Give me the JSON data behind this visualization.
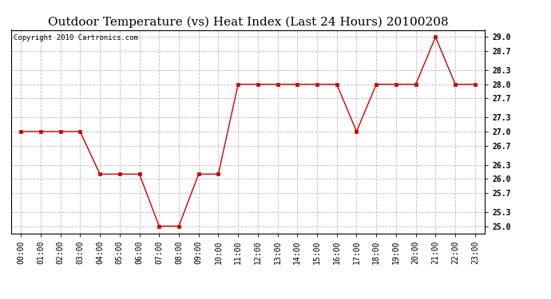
{
  "title": "Outdoor Temperature (vs) Heat Index (Last 24 Hours) 20100208",
  "copyright_text": "Copyright 2010 Cartronics.com",
  "x_labels": [
    "00:00",
    "01:00",
    "02:00",
    "03:00",
    "04:00",
    "05:00",
    "06:00",
    "07:00",
    "08:00",
    "09:00",
    "10:00",
    "11:00",
    "12:00",
    "13:00",
    "14:00",
    "15:00",
    "16:00",
    "17:00",
    "18:00",
    "19:00",
    "20:00",
    "21:00",
    "22:00",
    "23:00"
  ],
  "y_values": [
    27.0,
    27.0,
    27.0,
    27.0,
    26.1,
    26.1,
    26.1,
    25.0,
    25.0,
    26.1,
    26.1,
    28.0,
    28.0,
    28.0,
    28.0,
    28.0,
    28.0,
    27.0,
    28.0,
    28.0,
    28.0,
    29.0,
    28.0,
    28.0
  ],
  "line_color": "#cc0000",
  "marker": "s",
  "marker_size": 3,
  "marker_color": "#cc0000",
  "background_color": "#ffffff",
  "grid_color": "#bbbbbb",
  "ylim": [
    24.85,
    29.15
  ],
  "yticks": [
    25.0,
    25.3,
    25.7,
    26.0,
    26.3,
    26.7,
    27.0,
    27.3,
    27.7,
    28.0,
    28.3,
    28.7,
    29.0
  ],
  "title_fontsize": 11,
  "axis_label_fontsize": 7,
  "copyright_fontsize": 6.5
}
